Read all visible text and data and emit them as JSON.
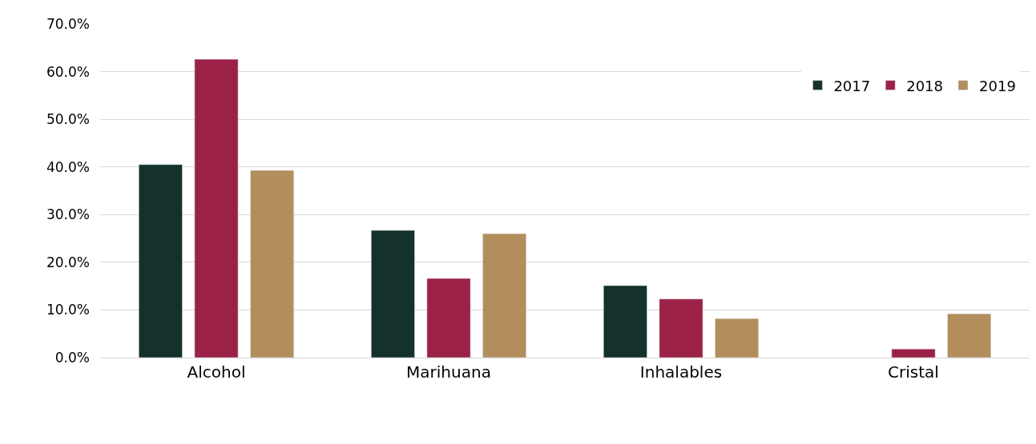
{
  "chart_data": {
    "type": "bar",
    "categories": [
      "Alcohol",
      "Marihuana",
      "Inhalables",
      "Cristal"
    ],
    "series": [
      {
        "name": "2017",
        "color": "#15312c",
        "values": [
          40.5,
          26.7,
          15.1,
          null
        ]
      },
      {
        "name": "2018",
        "color": "#9b2246",
        "values": [
          62.6,
          16.6,
          12.3,
          1.8
        ]
      },
      {
        "name": "2019",
        "color": "#b38e5d",
        "values": [
          39.3,
          26.0,
          8.2,
          9.2
        ]
      }
    ],
    "ylim": [
      0,
      70
    ],
    "yticks": [
      {
        "value": 0,
        "label": "0.0%"
      },
      {
        "value": 10,
        "label": "10.0%"
      },
      {
        "value": 20,
        "label": "20.0%"
      },
      {
        "value": 30,
        "label": "30.0%"
      },
      {
        "value": 40,
        "label": "40.0%"
      },
      {
        "value": 50,
        "label": "50.0%"
      },
      {
        "value": 60,
        "label": "60.0%"
      },
      {
        "value": 70,
        "label": "70.0%"
      }
    ],
    "grid": "y",
    "legend": "top right"
  }
}
